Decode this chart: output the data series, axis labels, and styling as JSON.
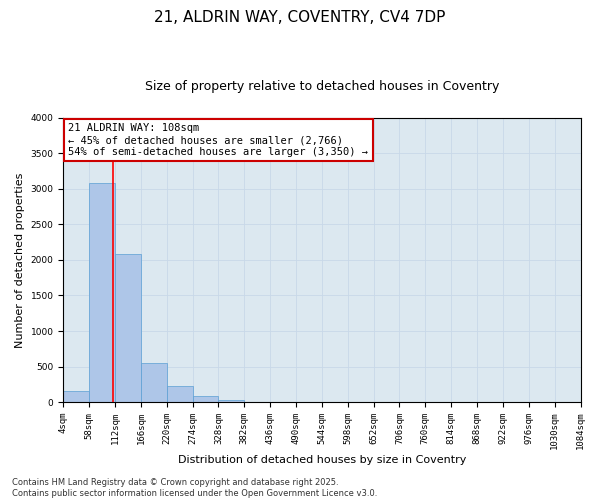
{
  "title1": "21, ALDRIN WAY, COVENTRY, CV4 7DP",
  "title2": "Size of property relative to detached houses in Coventry",
  "xlabel": "Distribution of detached houses by size in Coventry",
  "ylabel": "Number of detached properties",
  "bin_labels": [
    "4sqm",
    "58sqm",
    "112sqm",
    "166sqm",
    "220sqm",
    "274sqm",
    "328sqm",
    "382sqm",
    "436sqm",
    "490sqm",
    "544sqm",
    "598sqm",
    "652sqm",
    "706sqm",
    "760sqm",
    "814sqm",
    "868sqm",
    "922sqm",
    "976sqm",
    "1030sqm",
    "1084sqm"
  ],
  "bin_edges": [
    4,
    58,
    112,
    166,
    220,
    274,
    328,
    382,
    436,
    490,
    544,
    598,
    652,
    706,
    760,
    814,
    868,
    922,
    976,
    1030,
    1084
  ],
  "bar_heights": [
    150,
    3080,
    2080,
    550,
    220,
    80,
    30,
    8,
    2,
    1,
    0,
    0,
    0,
    0,
    0,
    0,
    0,
    0,
    0,
    0
  ],
  "bar_color": "#aec6e8",
  "bar_edge_color": "#5a9fd4",
  "vline_x": 108,
  "vline_color": "#ff0000",
  "annotation_text": "21 ALDRIN WAY: 108sqm\n← 45% of detached houses are smaller (2,766)\n54% of semi-detached houses are larger (3,350) →",
  "annotation_box_color": "#ffffff",
  "annotation_box_edge": "#cc0000",
  "ylim": [
    0,
    4000
  ],
  "yticks": [
    0,
    500,
    1000,
    1500,
    2000,
    2500,
    3000,
    3500,
    4000
  ],
  "grid_color": "#c8d8e8",
  "background_color": "#dce8f0",
  "footer_text": "Contains HM Land Registry data © Crown copyright and database right 2025.\nContains public sector information licensed under the Open Government Licence v3.0.",
  "title1_fontsize": 11,
  "title2_fontsize": 9,
  "xlabel_fontsize": 8,
  "ylabel_fontsize": 8,
  "tick_fontsize": 6.5,
  "annotation_fontsize": 7.5,
  "footer_fontsize": 6
}
